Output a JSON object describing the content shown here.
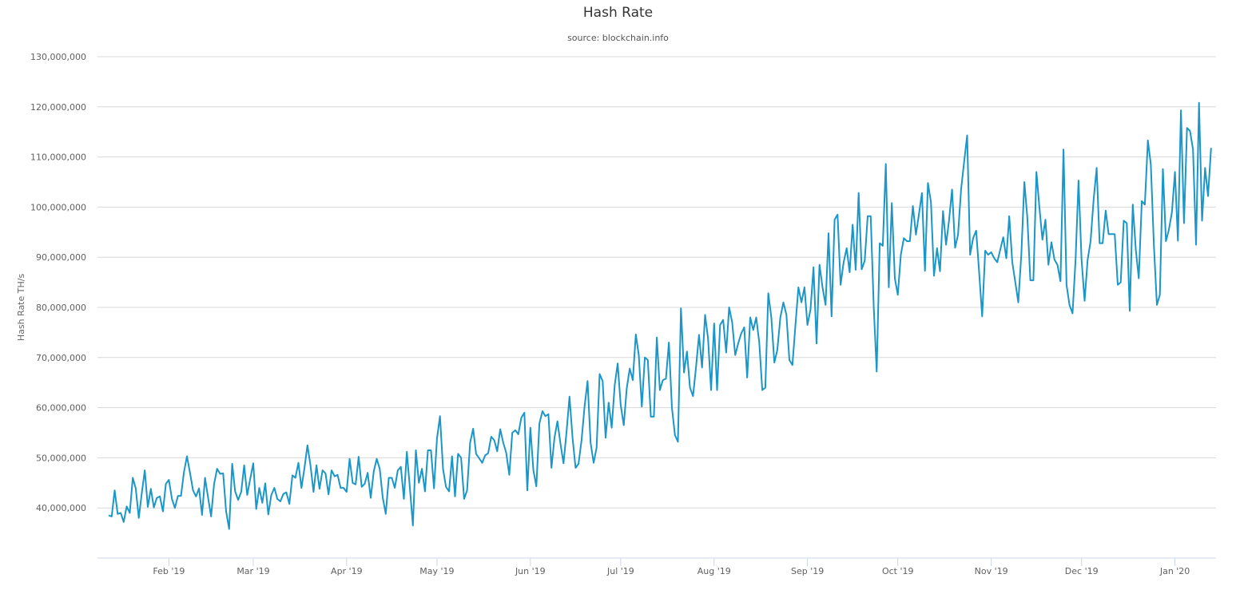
{
  "title": "Hash Rate",
  "subtitle": "source: blockchain.info",
  "colors": {
    "line": "#1a96c8",
    "grid": "#d8d8d8",
    "axis": "#ccd6eb"
  },
  "chart_data": {
    "type": "line",
    "title": "Hash Rate",
    "subtitle": "source: blockchain.info",
    "xlabel": "",
    "ylabel": "Hash Rate TH/s",
    "ylim": [
      30000000,
      130000000
    ],
    "grid": true,
    "legend": "none",
    "y_ticks": [
      "40,000,000",
      "50,000,000",
      "60,000,000",
      "70,000,000",
      "80,000,000",
      "90,000,000",
      "100,000,000",
      "110,000,000",
      "120,000,000",
      "130,000,000"
    ],
    "y_tick_values": [
      40000000,
      50000000,
      60000000,
      70000000,
      80000000,
      90000000,
      100000000,
      110000000,
      120000000,
      130000000
    ],
    "x_ticks": [
      "Feb '19",
      "Mar '19",
      "Apr '19",
      "May '19",
      "Jun '19",
      "Jul '19",
      "Aug '19",
      "Sep '19",
      "Oct '19",
      "Nov '19",
      "Dec '19",
      "Jan '20"
    ],
    "x_start": "2019-01-12",
    "x_step_days": 1,
    "series": [
      {
        "name": "Hash Rate",
        "unit": "TH/s (millions)",
        "values": [
          38.5,
          38.3,
          43.5,
          38.8,
          39.0,
          37.2,
          40.3,
          39.0,
          46.0,
          43.9,
          38.0,
          43.0,
          47.5,
          40.2,
          43.8,
          40.1,
          42.0,
          42.3,
          39.3,
          44.8,
          45.6,
          41.8,
          40.0,
          42.4,
          42.4,
          47.2,
          50.3,
          47.0,
          43.5,
          42.3,
          43.9,
          38.6,
          46.0,
          42.1,
          38.3,
          44.7,
          47.8,
          46.8,
          46.9,
          39.3,
          35.8,
          48.8,
          43.3,
          41.6,
          43.2,
          48.5,
          42.6,
          45.8,
          48.9,
          39.8,
          44.0,
          41.0,
          44.9,
          38.7,
          42.6,
          44.0,
          41.8,
          41.3,
          42.8,
          43.1,
          40.8,
          46.5,
          46.0,
          49.0,
          44.0,
          48.0,
          52.5,
          48.5,
          43.2,
          48.5,
          43.8,
          47.5,
          46.9,
          42.7,
          47.5,
          46.3,
          46.6,
          44.0,
          44.0,
          43.2,
          49.8,
          45.0,
          44.7,
          50.2,
          44.2,
          44.8,
          47.0,
          42.0,
          47.3,
          49.8,
          47.8,
          42.0,
          38.8,
          46.0,
          46.0,
          44.0,
          47.5,
          48.2,
          41.8,
          51.2,
          44.0,
          36.5,
          51.5,
          45.0,
          47.8,
          43.3,
          51.5,
          51.5,
          43.9,
          53.8,
          58.3,
          47.8,
          44.2,
          43.3,
          50.3,
          42.3,
          50.8,
          50.0,
          41.8,
          43.5,
          53.0,
          55.8,
          50.8,
          49.9,
          49.0,
          50.5,
          50.9,
          54.2,
          53.5,
          51.3,
          55.7,
          53.0,
          51.0,
          46.6,
          55.0,
          55.5,
          54.7,
          58.0,
          59.0,
          43.5,
          56.0,
          47.5,
          44.3,
          56.8,
          59.3,
          58.3,
          58.7,
          48.0,
          54.0,
          57.3,
          52.8,
          48.9,
          55.0,
          62.2,
          54.0,
          48.0,
          48.8,
          53.5,
          60.3,
          65.3,
          53.0,
          49.0,
          52.0,
          66.7,
          65.3,
          54.0,
          61.0,
          56.0,
          64.5,
          68.8,
          60.5,
          56.5,
          63.8,
          67.8,
          65.5,
          74.6,
          70.5,
          60.2,
          70.0,
          69.5,
          58.2,
          58.2,
          74.0,
          63.5,
          65.5,
          65.8,
          73.0,
          60.0,
          54.5,
          53.2,
          79.8,
          67.0,
          71.2,
          64.0,
          62.3,
          68.0,
          74.5,
          68.0,
          78.5,
          73.8,
          63.5,
          76.8,
          63.5,
          76.5,
          77.5,
          71.0,
          80.0,
          77.0,
          70.5,
          72.8,
          74.8,
          76.0,
          66.0,
          78.0,
          75.5,
          78.0,
          73.0,
          63.5,
          64.0,
          82.8,
          78.0,
          69.0,
          71.5,
          78.0,
          81.0,
          78.5,
          69.5,
          68.5,
          76.5,
          84.0,
          81.0,
          84.0,
          76.5,
          79.5,
          88.0,
          72.8,
          88.5,
          84.0,
          80.5,
          94.8,
          78.2,
          97.5,
          98.5,
          84.5,
          89.0,
          91.8,
          87.0,
          96.5,
          87.5,
          102.8,
          87.6,
          89.3,
          98.2,
          98.2,
          80.0,
          67.2,
          92.8,
          92.3,
          108.6,
          84.0,
          100.8,
          85.8,
          82.5,
          90.5,
          93.8,
          93.2,
          93.2,
          100.2,
          94.5,
          98.5,
          102.8,
          87.3,
          104.8,
          101.0,
          86.3,
          91.8,
          87.2,
          99.2,
          92.5,
          97.3,
          103.5,
          91.9,
          94.5,
          103.5,
          109.0,
          114.3,
          90.5,
          93.8,
          95.3,
          87.0,
          78.2,
          91.3,
          90.5,
          91.0,
          89.8,
          89.0,
          91.5,
          94.0,
          89.8,
          98.2,
          89.0,
          85.0,
          81.0,
          90.5,
          105.0,
          98.0,
          85.4,
          85.4,
          107.0,
          100.0,
          93.5,
          97.5,
          88.5,
          93.0,
          89.5,
          88.5,
          85.2,
          111.5,
          84.5,
          80.5,
          78.8,
          89.5,
          105.3,
          89.5,
          81.3,
          89.5,
          93.2,
          101.5,
          107.8,
          92.8,
          92.8,
          99.3,
          94.6,
          94.6,
          94.6,
          84.5,
          85.0,
          97.3,
          96.8,
          79.3,
          100.5,
          91.5,
          85.8,
          101.2,
          100.5,
          113.3,
          108.5,
          92.5,
          80.5,
          82.5,
          107.6,
          93.2,
          95.5,
          99.0,
          107.0,
          93.3,
          119.3,
          96.8,
          115.8,
          115.2,
          111.5,
          92.5,
          120.8,
          97.3,
          107.8,
          102.2,
          111.8
        ]
      }
    ]
  }
}
